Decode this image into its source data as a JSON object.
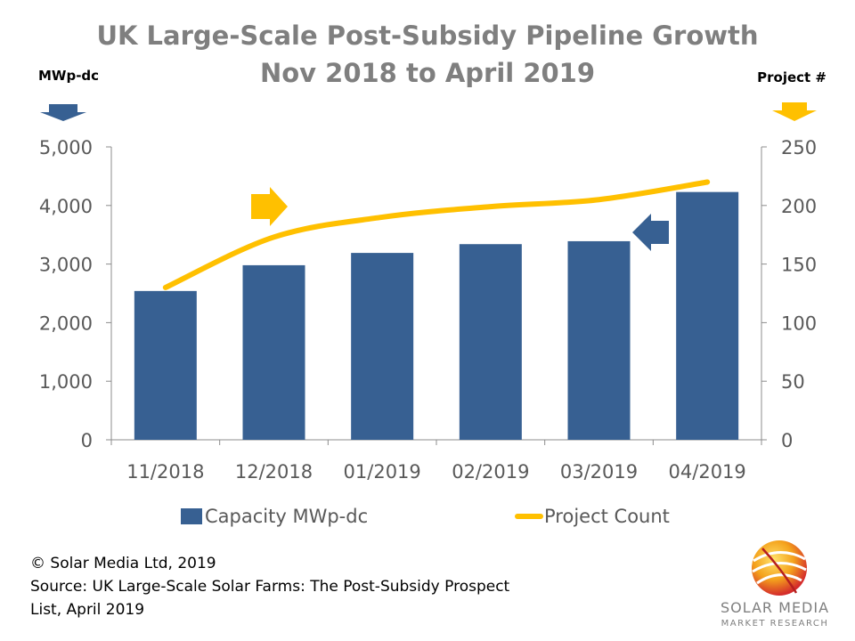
{
  "chart_data": {
    "type": "bar",
    "title": "UK Large-Scale Post-Subsidy Pipeline Growth",
    "subtitle": "Nov 2018 to April 2019",
    "left_axis_label": "MWp-dc",
    "right_axis_label": "Project #",
    "categories": [
      "11/2018",
      "12/2018",
      "01/2019",
      "02/2019",
      "03/2019",
      "04/2019"
    ],
    "y_left": {
      "min": 0,
      "max": 5000,
      "step": 1000,
      "tick_labels": [
        "0",
        "1,000",
        "2,000",
        "3,000",
        "4,000",
        "5,000"
      ]
    },
    "y_right": {
      "min": 0,
      "max": 250,
      "step": 50,
      "tick_labels": [
        "0",
        "50",
        "100",
        "150",
        "200",
        "250"
      ]
    },
    "series": [
      {
        "name": "Capacity MWp-dc",
        "type": "bar",
        "axis": "left",
        "color": "#376092",
        "values": [
          2540,
          2980,
          3190,
          3340,
          3390,
          4230
        ]
      },
      {
        "name": "Project Count",
        "type": "line",
        "axis": "right",
        "color": "#FFC000",
        "values": [
          130,
          173,
          190,
          199,
          205,
          220
        ]
      }
    ],
    "legend": "bottom",
    "grid": false
  },
  "footer": {
    "copyright": "© Solar Media Ltd, 2019",
    "source_line1": "Source: UK Large-Scale Solar Farms: The Post-Subsidy Prospect",
    "source_line2": "List, April 2019"
  },
  "logo": {
    "name": "SOLAR MEDIA",
    "subtitle": "MARKET RESEARCH"
  }
}
